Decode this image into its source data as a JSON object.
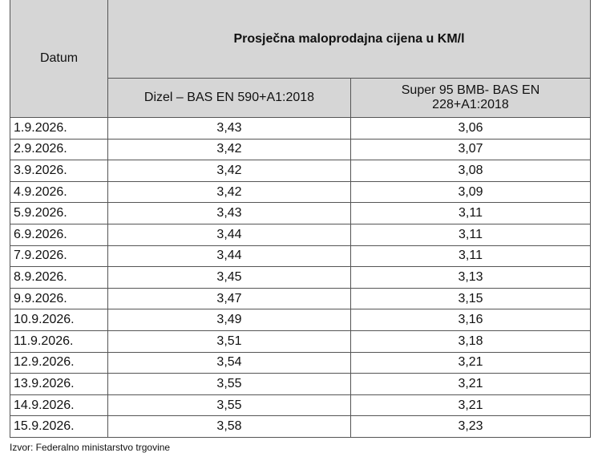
{
  "table": {
    "header": {
      "date_label": "Datum",
      "group_label": "Prosječna maloprodajna cijena u KM/l",
      "columns": [
        "Dizel – BAS EN 590+A1:2018",
        "Super 95 BMB- BAS EN 228+A1:2018"
      ]
    },
    "rows": [
      [
        "1.9.2026.",
        "3,43",
        "3,06"
      ],
      [
        "2.9.2026.",
        "3,42",
        "3,07"
      ],
      [
        "3.9.2026.",
        "3,42",
        "3,08"
      ],
      [
        "4.9.2026.",
        "3,42",
        "3,09"
      ],
      [
        "5.9.2026.",
        "3,43",
        "3,11"
      ],
      [
        "6.9.2026.",
        "3,44",
        "3,11"
      ],
      [
        "7.9.2026.",
        "3,44",
        "3,11"
      ],
      [
        "8.9.2026.",
        "3,45",
        "3,13"
      ],
      [
        "9.9.2026.",
        "3,47",
        "3,15"
      ],
      [
        "10.9.2026.",
        "3,49",
        "3,16"
      ],
      [
        "11.9.2026.",
        "3,51",
        "3,18"
      ],
      [
        "12.9.2026.",
        "3,54",
        "3,21"
      ],
      [
        "13.9.2026.",
        "3,55",
        "3,21"
      ],
      [
        "14.9.2026.",
        "3,55",
        "3,21"
      ],
      [
        "15.9.2026.",
        "3,58",
        "3,23"
      ]
    ]
  },
  "source": "Izvor: Federalno ministarstvo trgovine"
}
